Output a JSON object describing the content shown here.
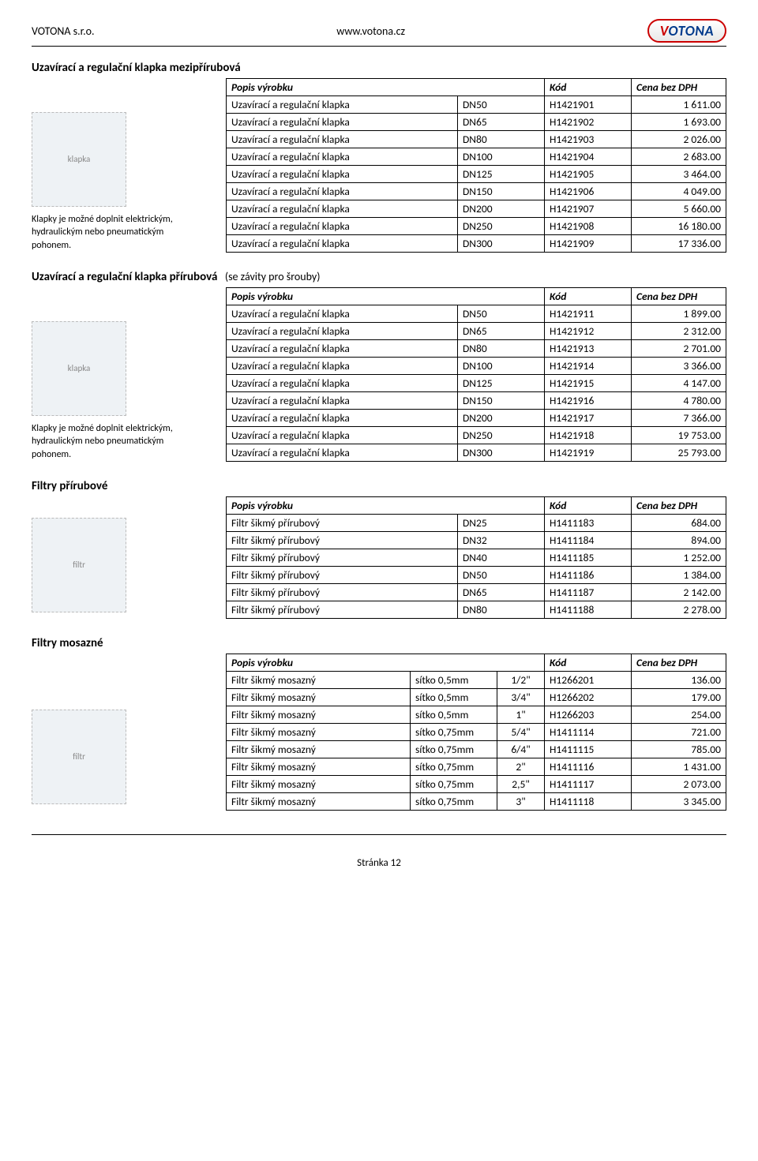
{
  "header": {
    "company": "VOTONA s.r.o.",
    "url": "www.votona.cz",
    "logo_text": "VOTONA"
  },
  "sections": [
    {
      "title": "Uzavírací a regulační klapka mezipřírubová",
      "subtitle": "",
      "caption_lines": [
        "Klapky je možné doplnit elektrickým,",
        "hydraulickým nebo pneumatickým",
        "pohonem."
      ],
      "image_label": "klapka",
      "table": {
        "headers": [
          "Popis výrobku",
          "Kód",
          "Cena bez DPH"
        ],
        "col_layout": "two",
        "rows": [
          [
            "Uzavírací a regulační klapka",
            "DN50",
            "H1421901",
            "1 611.00"
          ],
          [
            "Uzavírací a regulační klapka",
            "DN65",
            "H1421902",
            "1 693.00"
          ],
          [
            "Uzavírací a regulační klapka",
            "DN80",
            "H1421903",
            "2 026.00"
          ],
          [
            "Uzavírací a regulační klapka",
            "DN100",
            "H1421904",
            "2 683.00"
          ],
          [
            "Uzavírací a regulační klapka",
            "DN125",
            "H1421905",
            "3 464.00"
          ],
          [
            "Uzavírací a regulační klapka",
            "DN150",
            "H1421906",
            "4 049.00"
          ],
          [
            "Uzavírací a regulační klapka",
            "DN200",
            "H1421907",
            "5 660.00"
          ],
          [
            "Uzavírací a regulační klapka",
            "DN250",
            "H1421908",
            "16 180.00"
          ],
          [
            "Uzavírací a regulační klapka",
            "DN300",
            "H1421909",
            "17 336.00"
          ]
        ]
      }
    },
    {
      "title": "Uzavírací a regulační klapka přírubová",
      "subtitle": "(se závity pro šrouby)",
      "caption_lines": [
        "Klapky je možné doplnit elektrickým,",
        "hydraulickým nebo pneumatickým",
        "pohonem."
      ],
      "image_label": "klapka",
      "table": {
        "headers": [
          "Popis výrobku",
          "Kód",
          "Cena bez DPH"
        ],
        "col_layout": "two",
        "rows": [
          [
            "Uzavírací a regulační klapka",
            "DN50",
            "H1421911",
            "1 899.00"
          ],
          [
            "Uzavírací a regulační klapka",
            "DN65",
            "H1421912",
            "2 312.00"
          ],
          [
            "Uzavírací a regulační klapka",
            "DN80",
            "H1421913",
            "2 701.00"
          ],
          [
            "Uzavírací a regulační klapka",
            "DN100",
            "H1421914",
            "3 366.00"
          ],
          [
            "Uzavírací a regulační klapka",
            "DN125",
            "H1421915",
            "4 147.00"
          ],
          [
            "Uzavírací a regulační klapka",
            "DN150",
            "H1421916",
            "4 780.00"
          ],
          [
            "Uzavírací a regulační klapka",
            "DN200",
            "H1421917",
            "7 366.00"
          ],
          [
            "Uzavírací a regulační klapka",
            "DN250",
            "H1421918",
            "19 753.00"
          ],
          [
            "Uzavírací a regulační klapka",
            "DN300",
            "H1421919",
            "25 793.00"
          ]
        ]
      }
    },
    {
      "title": "Filtry přírubové",
      "subtitle": "",
      "caption_lines": [],
      "image_label": "filtr",
      "table": {
        "headers": [
          "Popis výrobku",
          "Kód",
          "Cena bez DPH"
        ],
        "col_layout": "two",
        "rows": [
          [
            "Filtr šikmý přírubový",
            "DN25",
            "H1411183",
            "684.00"
          ],
          [
            "Filtr šikmý přírubový",
            "DN32",
            "H1411184",
            "894.00"
          ],
          [
            "Filtr šikmý přírubový",
            "DN40",
            "H1411185",
            "1 252.00"
          ],
          [
            "Filtr šikmý přírubový",
            "DN50",
            "H1411186",
            "1 384.00"
          ],
          [
            "Filtr šikmý přírubový",
            "DN65",
            "H1411187",
            "2 142.00"
          ],
          [
            "Filtr šikmý přírubový",
            "DN80",
            "H1411188",
            "2 278.00"
          ]
        ]
      }
    },
    {
      "title": "Filtry mosazné",
      "subtitle": "",
      "caption_lines": [],
      "image_label": "filtr",
      "table": {
        "headers": [
          "Popis výrobku",
          "Kód",
          "Cena bez DPH"
        ],
        "col_layout": "three",
        "rows": [
          [
            "Filtr šikmý mosazný",
            "sítko 0,5mm",
            "1/2\"",
            "H1266201",
            "136.00"
          ],
          [
            "Filtr šikmý mosazný",
            "sítko 0,5mm",
            "3/4\"",
            "H1266202",
            "179.00"
          ],
          [
            "Filtr šikmý mosazný",
            "sítko 0,5mm",
            "1\"",
            "H1266203",
            "254.00"
          ],
          [
            "Filtr šikmý mosazný",
            "sítko 0,75mm",
            "5/4\"",
            "H1411114",
            "721.00"
          ],
          [
            "Filtr šikmý mosazný",
            "sítko 0,75mm",
            "6/4\"",
            "H1411115",
            "785.00"
          ],
          [
            "Filtr šikmý mosazný",
            "sítko 0,75mm",
            "2\"",
            "H1411116",
            "1 431.00"
          ],
          [
            "Filtr šikmý mosazný",
            "sítko 0,75mm",
            "2,5\"",
            "H1411117",
            "2 073.00"
          ],
          [
            "Filtr šikmý mosazný",
            "sítko 0,75mm",
            "3\"",
            "H1411118",
            "3 345.00"
          ]
        ]
      }
    }
  ],
  "footer": {
    "page": "Stránka 12"
  }
}
